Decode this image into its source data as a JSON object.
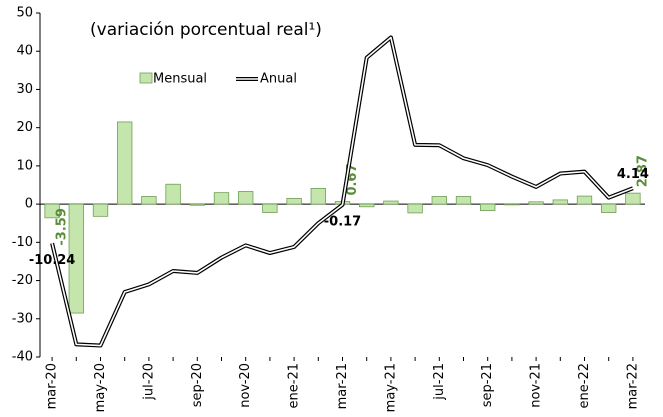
{
  "chart_data": {
    "type": "bar_line",
    "title": "(variación porcentual real¹)",
    "categories": [
      "mar-20",
      null,
      "may-20",
      null,
      "jul-20",
      null,
      "sep-20",
      null,
      "nov-20",
      null,
      "ene-21",
      null,
      "mar-21",
      null,
      "may-21",
      null,
      "jul-21",
      null,
      "sep-21",
      null,
      "nov-21",
      null,
      "ene-22",
      null,
      "mar-22"
    ],
    "series": [
      {
        "name": "Mensual",
        "type": "bar",
        "color": "#c4e6ad",
        "values": [
          -3.59,
          -28.5,
          -3.2,
          21.5,
          2,
          5.2,
          -0.3,
          3,
          3.3,
          -2.2,
          1.5,
          4.1,
          0.67,
          -0.7,
          0.8,
          -2.3,
          2,
          2,
          -1.7,
          -0.2,
          0.6,
          1.1,
          2.1,
          -2.2,
          2.87
        ],
        "value_labels": [
          "-3.59",
          null,
          null,
          null,
          null,
          null,
          null,
          null,
          null,
          null,
          null,
          null,
          "0.67",
          null,
          null,
          null,
          null,
          null,
          null,
          null,
          null,
          null,
          null,
          null,
          "2.87"
        ]
      },
      {
        "name": "Anual",
        "type": "line",
        "color": "#000000",
        "values": [
          -10.24,
          -36.7,
          -37,
          -23,
          -21,
          -17.5,
          -18,
          -14,
          -10.8,
          -12.8,
          -11.2,
          -5,
          -0.17,
          38.3,
          43.6,
          15.5,
          15.4,
          12,
          10.2,
          7.2,
          4.5,
          8,
          8.5,
          1.7,
          4.14
        ],
        "value_labels": [
          "-10.24",
          null,
          null,
          null,
          null,
          null,
          null,
          null,
          null,
          null,
          null,
          null,
          "-0.17",
          null,
          null,
          null,
          null,
          null,
          null,
          null,
          null,
          null,
          null,
          null,
          "4.14"
        ]
      }
    ],
    "ylim": [
      -40,
      50
    ],
    "yticks": [
      -40,
      -30,
      -20,
      -10,
      0,
      10,
      20,
      30,
      40,
      50
    ],
    "grid": false
  }
}
